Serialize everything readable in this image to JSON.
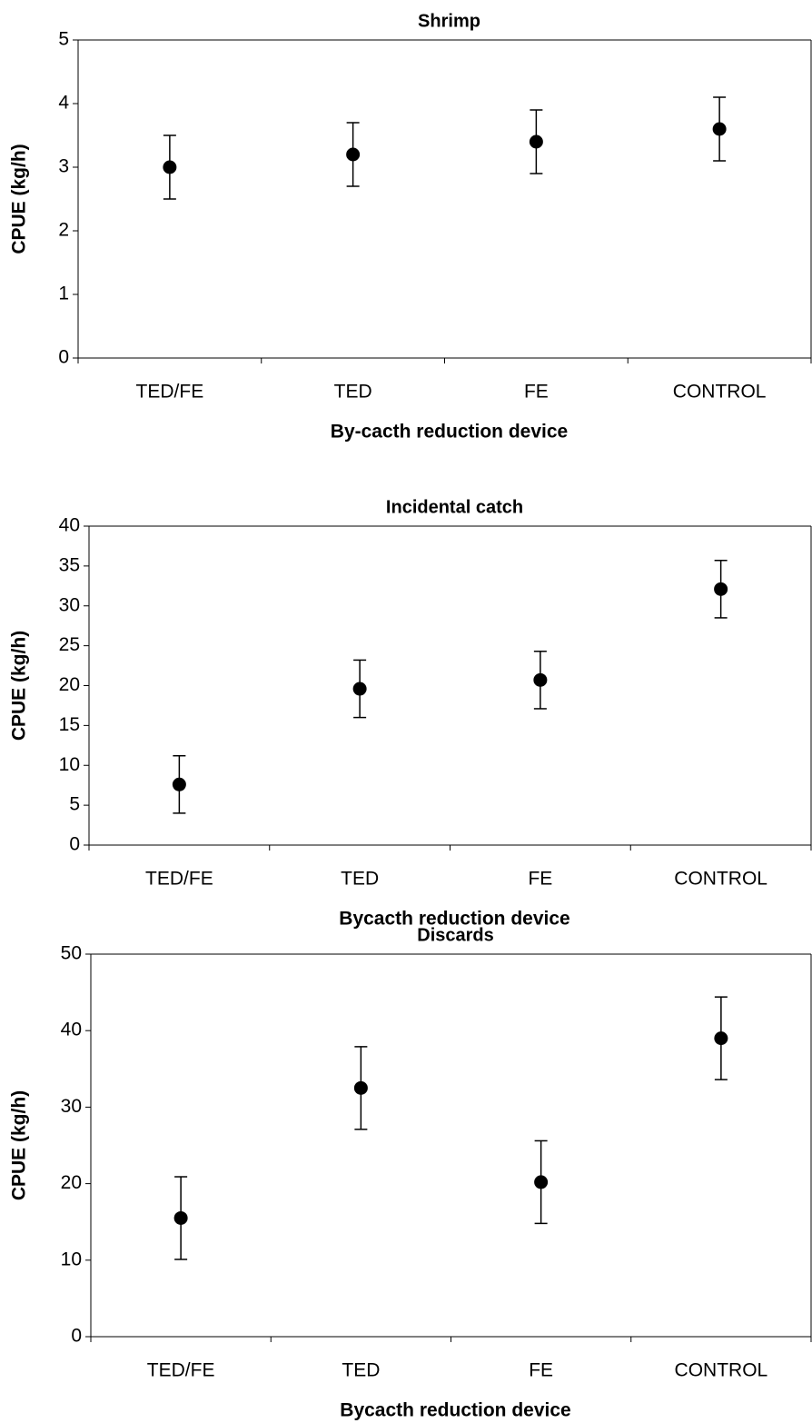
{
  "chart_data": [
    {
      "type": "errorbar",
      "title": "Shrimp",
      "x_label": "By-cacth reduction device",
      "y_label": "CPUE (kg/h)",
      "categories": [
        "TED/FE",
        "TED",
        "FE",
        "CONTROL"
      ],
      "values": [
        3.0,
        3.2,
        3.4,
        3.6
      ],
      "errors": [
        0.5,
        0.5,
        0.5,
        0.5
      ],
      "color": "#000000",
      "ylim": [
        0,
        5
      ],
      "yticks": [
        0,
        1,
        2,
        3,
        4,
        5
      ]
    },
    {
      "type": "errorbar",
      "title": "Incidental catch",
      "x_label": "Bycacth reduction device",
      "y_label": "CPUE (kg/h)",
      "categories": [
        "TED/FE",
        "TED",
        "FE",
        "CONTROL"
      ],
      "values": [
        7.6,
        19.6,
        20.7,
        32.1
      ],
      "errors": [
        3.6,
        3.6,
        3.6,
        3.6
      ],
      "color": "#000000",
      "ylim": [
        0,
        40
      ],
      "yticks": [
        0,
        5,
        10,
        15,
        20,
        25,
        30,
        35,
        40
      ]
    },
    {
      "type": "errorbar",
      "title": "Discards",
      "x_label": "Bycacth reduction device",
      "y_label": "CPUE (kg/h)",
      "categories": [
        "TED/FE",
        "TED",
        "FE",
        "CONTROL"
      ],
      "values": [
        15.5,
        32.5,
        20.2,
        39.0
      ],
      "errors": [
        5.4,
        5.4,
        5.4,
        5.4
      ],
      "color": "#000000",
      "ylim": [
        0,
        50
      ],
      "yticks": [
        0,
        10,
        20,
        30,
        40,
        50
      ]
    }
  ]
}
